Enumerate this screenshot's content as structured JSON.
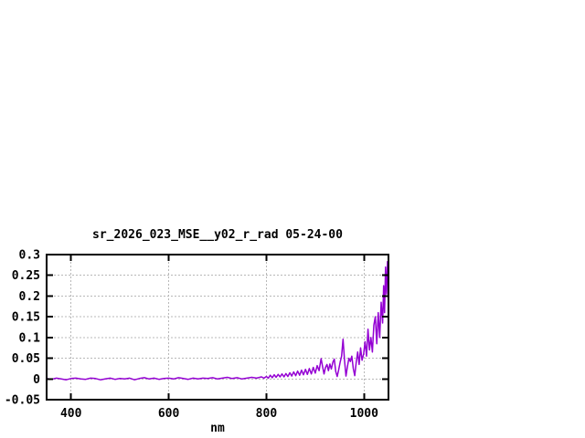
{
  "window": {
    "background": "#ffffff"
  },
  "chart_data": {
    "type": "line",
    "title": "sr_2026_023_MSE__y02_r_rad 05-24-00",
    "xlabel": "nm",
    "ylabel": "",
    "xlim": [
      350,
      1050
    ],
    "ylim": [
      -0.05,
      0.3
    ],
    "xticks": [
      400,
      600,
      800,
      1000
    ],
    "xtick_labels": [
      "400",
      "600",
      "800",
      "1000"
    ],
    "yticks": [
      -0.05,
      0,
      0.05,
      0.1,
      0.15,
      0.2,
      0.25,
      0.3
    ],
    "ytick_labels": [
      "-0.05",
      "0",
      "0.05",
      "0.1",
      "0.15",
      "0.2",
      "0.25",
      "0.3"
    ],
    "grid": true,
    "grid_style": "dashed",
    "legend": "none",
    "line_color": "#9400d3",
    "grid_color": "#b8b8b8",
    "frame_color": "#000000",
    "series": [
      {
        "points": [
          [
            350,
            0.001
          ],
          [
            360,
            -0.001
          ],
          [
            370,
            0.002
          ],
          [
            380,
            0
          ],
          [
            390,
            -0.002
          ],
          [
            400,
            0.001
          ],
          [
            410,
            0.002
          ],
          [
            420,
            0
          ],
          [
            430,
            -0.001
          ],
          [
            440,
            0.002
          ],
          [
            450,
            0.001
          ],
          [
            460,
            -0.002
          ],
          [
            470,
            0
          ],
          [
            480,
            0.002
          ],
          [
            490,
            -0.001
          ],
          [
            500,
            0.001
          ],
          [
            510,
            0
          ],
          [
            520,
            0.002
          ],
          [
            530,
            -0.002
          ],
          [
            540,
            0.001
          ],
          [
            550,
            0.003
          ],
          [
            560,
            0
          ],
          [
            570,
            0.002
          ],
          [
            580,
            -0.001
          ],
          [
            590,
            0.001
          ],
          [
            600,
            0.002
          ],
          [
            610,
            0
          ],
          [
            620,
            0.003
          ],
          [
            630,
            0.001
          ],
          [
            640,
            -0.001
          ],
          [
            650,
            0.002
          ],
          [
            660,
            0
          ],
          [
            670,
            0.002
          ],
          [
            680,
            0.001
          ],
          [
            690,
            0.003
          ],
          [
            700,
            0
          ],
          [
            710,
            0.002
          ],
          [
            720,
            0.004
          ],
          [
            730,
            0.001
          ],
          [
            740,
            0.003
          ],
          [
            750,
            0
          ],
          [
            760,
            0.002
          ],
          [
            770,
            0.004
          ],
          [
            780,
            0.002
          ],
          [
            790,
            0.005
          ],
          [
            795,
            0.002
          ],
          [
            800,
            0.006
          ],
          [
            804,
            0.002
          ],
          [
            808,
            0.009
          ],
          [
            812,
            0.003
          ],
          [
            816,
            0.01
          ],
          [
            820,
            0.004
          ],
          [
            824,
            0.011
          ],
          [
            828,
            0.005
          ],
          [
            832,
            0.012
          ],
          [
            836,
            0.005
          ],
          [
            840,
            0.013
          ],
          [
            844,
            0.006
          ],
          [
            848,
            0.015
          ],
          [
            852,
            0.007
          ],
          [
            856,
            0.017
          ],
          [
            860,
            0.008
          ],
          [
            864,
            0.019
          ],
          [
            868,
            0.009
          ],
          [
            872,
            0.021
          ],
          [
            876,
            0.01
          ],
          [
            880,
            0.023
          ],
          [
            884,
            0.011
          ],
          [
            888,
            0.025
          ],
          [
            892,
            0.012
          ],
          [
            896,
            0.028
          ],
          [
            900,
            0.014
          ],
          [
            904,
            0.032
          ],
          [
            908,
            0.02
          ],
          [
            912,
            0.049
          ],
          [
            915,
            0.03
          ],
          [
            918,
            0.012
          ],
          [
            921,
            0.028
          ],
          [
            924,
            0.035
          ],
          [
            927,
            0.02
          ],
          [
            930,
            0.036
          ],
          [
            933,
            0.024
          ],
          [
            936,
            0.04
          ],
          [
            939,
            0.048
          ],
          [
            942,
            0.018
          ],
          [
            945,
            0.006
          ],
          [
            948,
            0.022
          ],
          [
            951,
            0.04
          ],
          [
            954,
            0.055
          ],
          [
            957,
            0.096
          ],
          [
            960,
            0.045
          ],
          [
            963,
            0.007
          ],
          [
            966,
            0.03
          ],
          [
            969,
            0.05
          ],
          [
            972,
            0.042
          ],
          [
            975,
            0.055
          ],
          [
            978,
            0.025
          ],
          [
            981,
            0.008
          ],
          [
            984,
            0.04
          ],
          [
            987,
            0.065
          ],
          [
            990,
            0.035
          ],
          [
            993,
            0.075
          ],
          [
            996,
            0.045
          ],
          [
            999,
            0.06
          ],
          [
            1002,
            0.09
          ],
          [
            1005,
            0.055
          ],
          [
            1008,
            0.12
          ],
          [
            1011,
            0.07
          ],
          [
            1014,
            0.1
          ],
          [
            1017,
            0.065
          ],
          [
            1020,
            0.13
          ],
          [
            1023,
            0.15
          ],
          [
            1026,
            0.085
          ],
          [
            1029,
            0.16
          ],
          [
            1032,
            0.1
          ],
          [
            1035,
            0.185
          ],
          [
            1038,
            0.135
          ],
          [
            1040,
            0.225
          ],
          [
            1042,
            0.16
          ],
          [
            1044,
            0.27
          ],
          [
            1046,
            0.205
          ],
          [
            1048,
            0.283
          ],
          [
            1050,
            0.272
          ]
        ]
      }
    ]
  }
}
